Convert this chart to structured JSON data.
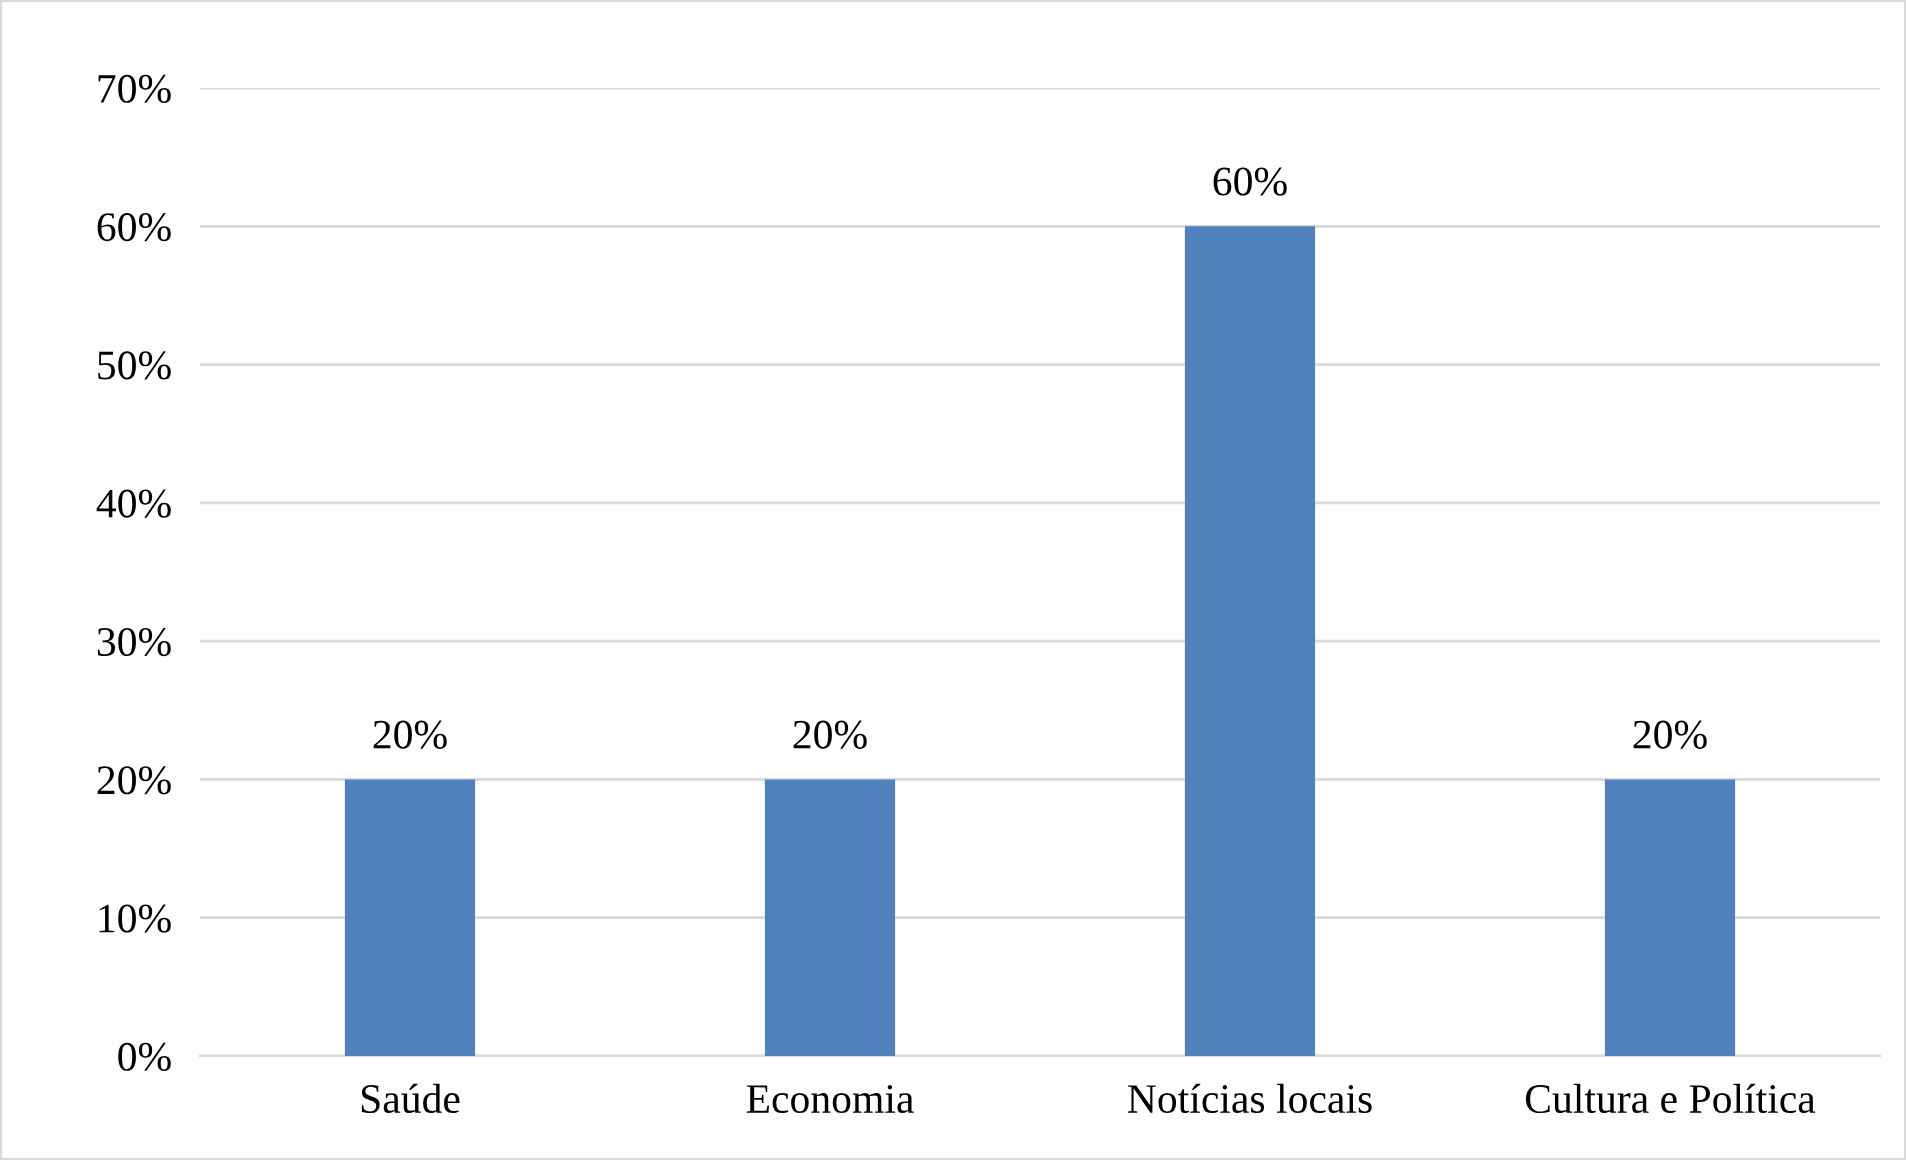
{
  "chart_data": {
    "type": "bar",
    "categories": [
      "Saúde",
      "Economia",
      "Notícias locais",
      "Cultura e Política"
    ],
    "values": [
      20,
      20,
      60,
      20
    ],
    "color": "#4f81bd",
    "value_labels": [
      "20%",
      "20%",
      "60%",
      "20%"
    ],
    "ylim": [
      0,
      70
    ],
    "yticks": [
      {
        "value": 0,
        "label": "0%"
      },
      {
        "value": 10,
        "label": "10%"
      },
      {
        "value": 20,
        "label": "20%"
      },
      {
        "value": 30,
        "label": "30%"
      },
      {
        "value": 40,
        "label": "40%"
      },
      {
        "value": 50,
        "label": "50%"
      },
      {
        "value": 60,
        "label": "60%"
      },
      {
        "value": 70,
        "label": "70%"
      }
    ],
    "grid": "y",
    "legend": false
  }
}
